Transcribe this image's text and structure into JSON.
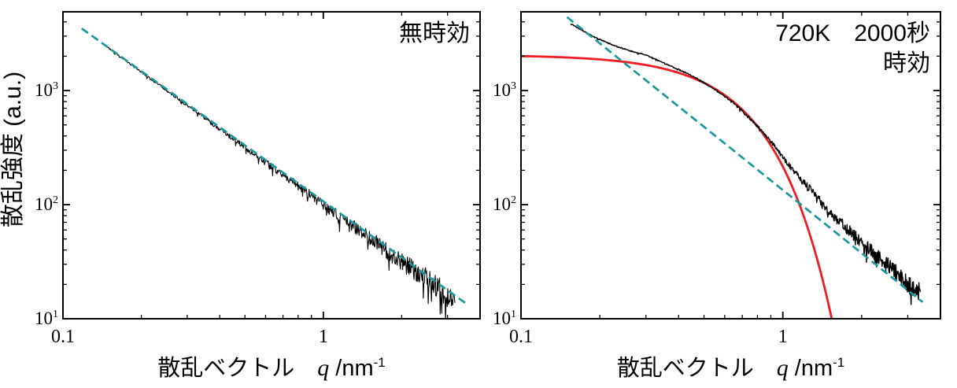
{
  "figure": {
    "background": "#ffffff",
    "axis_color": "#000000"
  },
  "chart_data": [
    {
      "id": "plot-left",
      "type": "line",
      "title_annotation_lines": [
        "無時効"
      ],
      "ylabel": "散乱強度 (a.u.)",
      "xlabel": {
        "prefix": "散乱ベクトル　",
        "symbol": "q",
        "unit": " /nm",
        "exponent": "-1"
      },
      "xscale": "log",
      "yscale": "log",
      "xlim": [
        0.1,
        4.0
      ],
      "ylim": [
        10,
        4900
      ],
      "xticks": [
        {
          "v": 0.1,
          "label": "0.1"
        },
        {
          "v": 1,
          "label": "1"
        }
      ],
      "yticks": [
        {
          "v": 10,
          "base": "10",
          "exp": "1"
        },
        {
          "v": 100,
          "base": "10",
          "exp": "2"
        },
        {
          "v": 1000,
          "base": "10",
          "exp": "3"
        }
      ],
      "series": [
        {
          "name": "measured-intensity",
          "kind": "noisy",
          "color": "#000000",
          "width": 1.1,
          "anchors": [
            [
              0.148,
              2400
            ],
            [
              3.2,
              14.5
            ]
          ],
          "noise": [
            [
              0.148,
              0.006
            ],
            [
              0.3,
              0.013
            ],
            [
              0.6,
              0.03
            ],
            [
              1.2,
              0.055
            ],
            [
              2.0,
              0.085
            ],
            [
              3.2,
              0.12
            ]
          ],
          "points": 640,
          "seed": 41
        },
        {
          "name": "power-law-fit",
          "kind": "line",
          "color": "#1b979d",
          "width": 2.7,
          "dash": "10 5.5",
          "anchors": [
            [
              0.118,
              3500
            ],
            [
              3.55,
              13.5
            ]
          ]
        }
      ]
    },
    {
      "id": "plot-right",
      "type": "line",
      "title_annotation_lines": [
        "720K　2000秒",
        "時効"
      ],
      "xlabel": {
        "prefix": "散乱ベクトル　",
        "symbol": "q",
        "unit": " /nm",
        "exponent": "-1"
      },
      "xscale": "log",
      "yscale": "log",
      "xlim": [
        0.1,
        4.0
      ],
      "ylim": [
        10,
        4900
      ],
      "xticks": [
        {
          "v": 0.1,
          "label": "0.1"
        },
        {
          "v": 1,
          "label": "1"
        }
      ],
      "yticks": [
        {
          "v": 10,
          "base": "10",
          "exp": "1"
        },
        {
          "v": 100,
          "base": "10",
          "exp": "2"
        },
        {
          "v": 1000,
          "base": "10",
          "exp": "3"
        }
      ],
      "series": [
        {
          "name": "guinier-fit",
          "kind": "guinier",
          "color": "#ee1c23",
          "width": 2.8,
          "I0": 2050,
          "Rg": 2.6,
          "qmin": 0.1,
          "points": 240
        },
        {
          "name": "measured-intensity",
          "kind": "noisy",
          "color": "#000000",
          "width": 1.4,
          "anchors": [
            [
              0.155,
              3850
            ],
            [
              0.19,
              2950
            ],
            [
              0.225,
              2500
            ],
            [
              0.26,
              2230
            ],
            [
              0.3,
              2050
            ],
            [
              0.34,
              1800
            ],
            [
              0.4,
              1530
            ],
            [
              0.47,
              1280
            ],
            [
              0.55,
              1020
            ],
            [
              0.65,
              780
            ],
            [
              0.78,
              520
            ],
            [
              0.9,
              360
            ],
            [
              1.02,
              245
            ],
            [
              1.15,
              175
            ],
            [
              1.3,
              130
            ],
            [
              1.5,
              88
            ],
            [
              1.75,
              62
            ],
            [
              2.1,
              42
            ],
            [
              2.6,
              28
            ],
            [
              3.0,
              20
            ],
            [
              3.35,
              17
            ]
          ],
          "noise": [
            [
              0.155,
              0.004
            ],
            [
              0.6,
              0.006
            ],
            [
              1.0,
              0.018
            ],
            [
              1.8,
              0.05
            ],
            [
              3.35,
              0.08
            ]
          ],
          "points": 760,
          "seed": 13
        },
        {
          "name": "power-law-fit",
          "kind": "line",
          "color": "#1b979d",
          "width": 2.7,
          "dash": "10 5.5",
          "anchors": [
            [
              0.15,
              4400
            ],
            [
              3.42,
              14
            ]
          ]
        }
      ]
    }
  ]
}
